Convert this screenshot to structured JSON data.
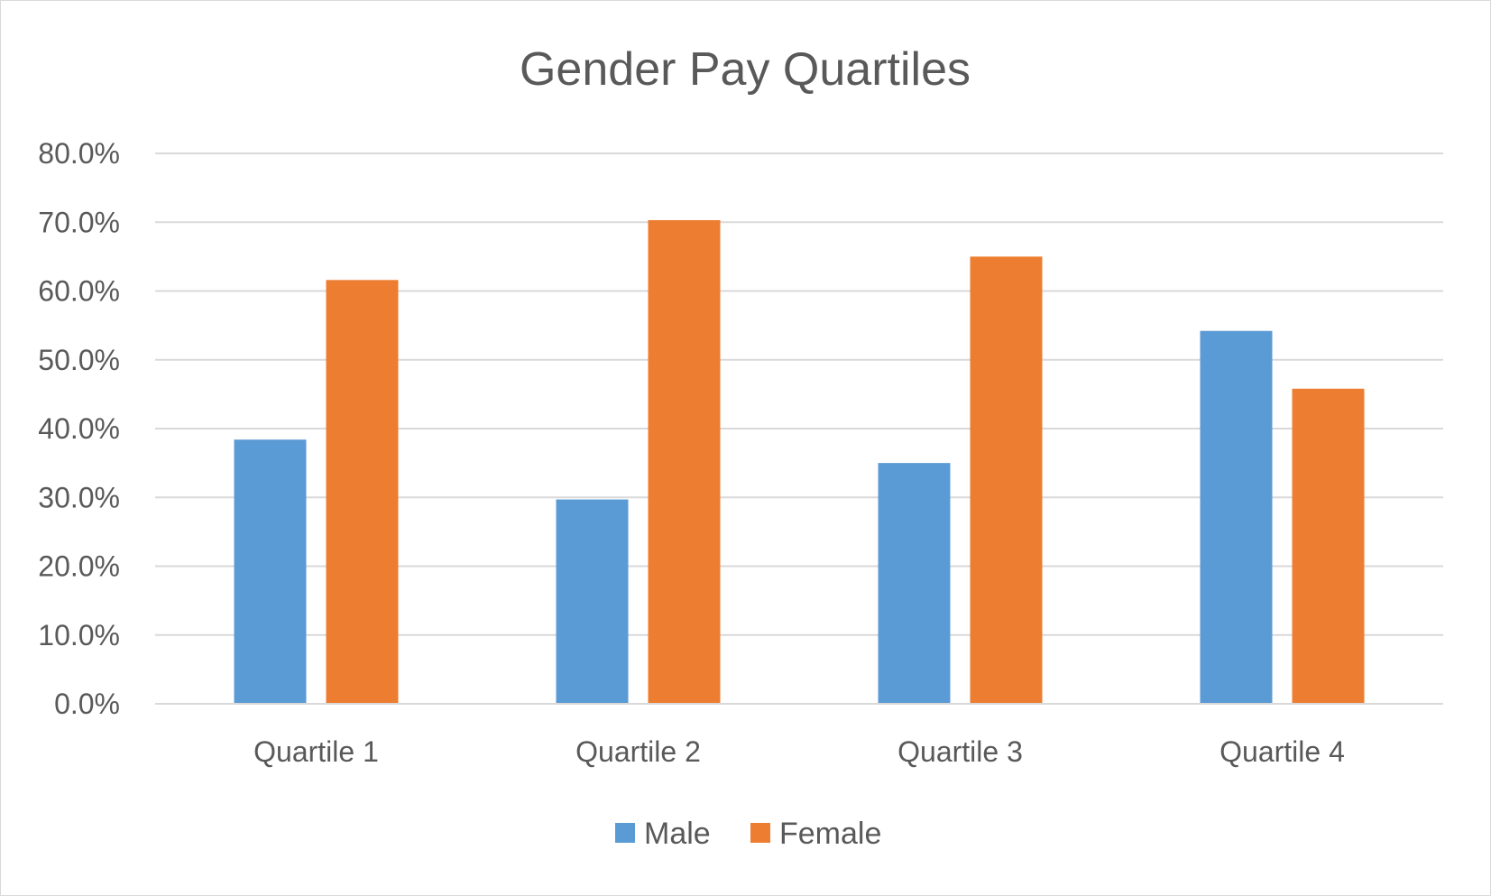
{
  "chart_data": {
    "type": "bar",
    "title": "Gender Pay Quartiles",
    "categories": [
      "Quartile 1",
      "Quartile 2",
      "Quartile 3",
      "Quartile 4"
    ],
    "series": [
      {
        "name": "Male",
        "color": "#5b9bd5",
        "values": [
          38.4,
          29.7,
          35.0,
          54.2
        ]
      },
      {
        "name": "Female",
        "color": "#ed7d31",
        "values": [
          61.6,
          70.3,
          65.0,
          45.8
        ]
      }
    ],
    "ylim": [
      0,
      80
    ],
    "yticks": [
      "0.0%",
      "10.0%",
      "20.0%",
      "30.0%",
      "40.0%",
      "50.0%",
      "60.0%",
      "70.0%",
      "80.0%"
    ],
    "grid": true,
    "legend_position": "bottom",
    "xlabel": "",
    "ylabel": ""
  }
}
